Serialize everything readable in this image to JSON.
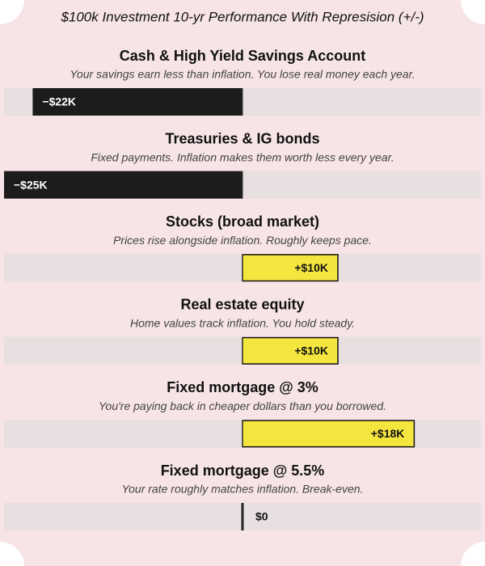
{
  "chart_data": {
    "type": "diverging-bar",
    "title": "$100k Investment 10-yr Performance With Represision (+/-)",
    "categories": [
      "Cash & High Yield Savings Account",
      "Treasuries & IG bonds",
      "Stocks (broad market)",
      "Real estate equity",
      "Fixed mortgage @ 3%",
      "Fixed mortgage @ 5.5%"
    ],
    "annotations": [
      "Your savings earn less than inflation. You lose real money each year.",
      "Fixed payments. Inflation makes them worth less every year.",
      "Prices rise alongside inflation. Roughly keeps pace.",
      "Home values track inflation. You hold steady.",
      "You're paying back in cheaper dollars than you borrowed.",
      "Your rate roughly matches inflation. Break-even."
    ],
    "values": [
      -22,
      -25,
      10,
      10,
      18,
      0
    ],
    "value_labels": [
      "−$22K",
      "−$25K",
      "+$10K",
      "+$10K",
      "+$18K",
      "$0"
    ],
    "negative_color": "#1c1c1c",
    "positive_color": "#f5e63f"
  }
}
